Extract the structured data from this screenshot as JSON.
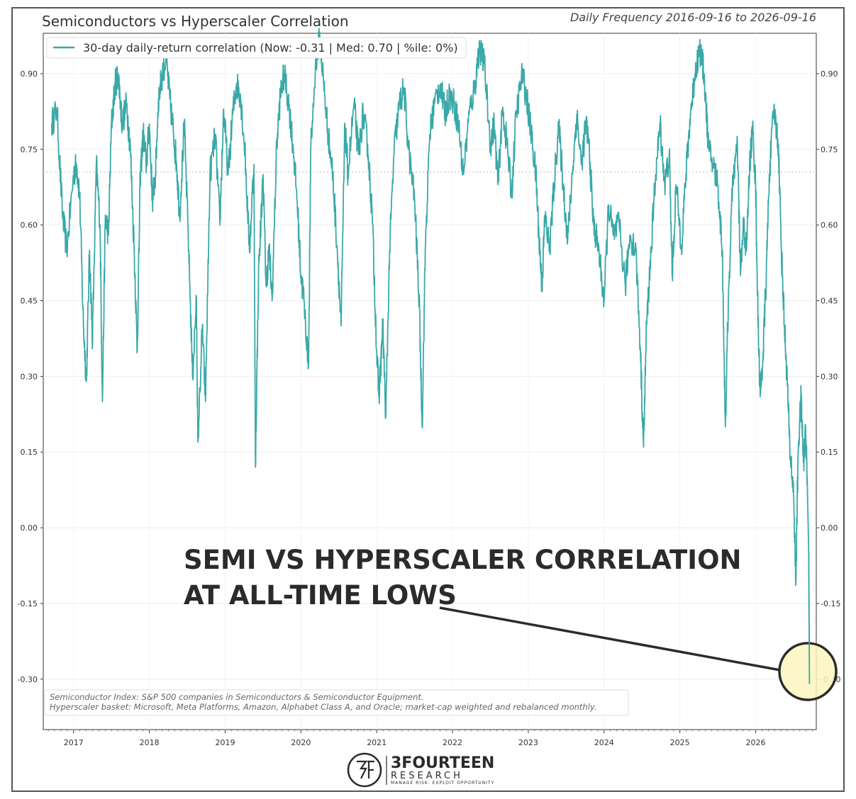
{
  "chart_data": {
    "type": "line",
    "title": "Semiconductors vs Hyperscaler Correlation",
    "subtitle": "Daily Frequency 2016-09-16 to 2026-09-16",
    "series": [
      {
        "name": "30-day daily-return correlation (Now: -0.31 | Med: 0.70 | %ile: 0%)",
        "color": "#3aa8a8",
        "points": [
          [
            2016.71,
            0.8
          ],
          [
            2016.78,
            0.83
          ],
          [
            2016.85,
            0.63
          ],
          [
            2016.91,
            0.55
          ],
          [
            2017.0,
            0.7
          ],
          [
            2017.04,
            0.72
          ],
          [
            2017.08,
            0.66
          ],
          [
            2017.13,
            0.4
          ],
          [
            2017.17,
            0.29
          ],
          [
            2017.21,
            0.55
          ],
          [
            2017.25,
            0.37
          ],
          [
            2017.3,
            0.72
          ],
          [
            2017.35,
            0.6
          ],
          [
            2017.38,
            0.25
          ],
          [
            2017.42,
            0.62
          ],
          [
            2017.46,
            0.58
          ],
          [
            2017.5,
            0.8
          ],
          [
            2017.55,
            0.88
          ],
          [
            2017.59,
            0.9
          ],
          [
            2017.64,
            0.8
          ],
          [
            2017.7,
            0.84
          ],
          [
            2017.75,
            0.75
          ],
          [
            2017.8,
            0.55
          ],
          [
            2017.84,
            0.35
          ],
          [
            2017.88,
            0.7
          ],
          [
            2017.92,
            0.78
          ],
          [
            2017.96,
            0.72
          ],
          [
            2018.0,
            0.8
          ],
          [
            2018.04,
            0.65
          ],
          [
            2018.08,
            0.7
          ],
          [
            2018.12,
            0.85
          ],
          [
            2018.17,
            0.9
          ],
          [
            2018.22,
            0.93
          ],
          [
            2018.27,
            0.85
          ],
          [
            2018.32,
            0.78
          ],
          [
            2018.36,
            0.72
          ],
          [
            2018.4,
            0.62
          ],
          [
            2018.46,
            0.8
          ],
          [
            2018.52,
            0.55
          ],
          [
            2018.57,
            0.3
          ],
          [
            2018.62,
            0.45
          ],
          [
            2018.64,
            0.17
          ],
          [
            2018.7,
            0.4
          ],
          [
            2018.74,
            0.25
          ],
          [
            2018.8,
            0.7
          ],
          [
            2018.87,
            0.78
          ],
          [
            2018.93,
            0.6
          ],
          [
            2018.98,
            0.83
          ],
          [
            2019.04,
            0.7
          ],
          [
            2019.1,
            0.82
          ],
          [
            2019.15,
            0.88
          ],
          [
            2019.2,
            0.86
          ],
          [
            2019.26,
            0.75
          ],
          [
            2019.32,
            0.55
          ],
          [
            2019.38,
            0.72
          ],
          [
            2019.4,
            0.12
          ],
          [
            2019.44,
            0.5
          ],
          [
            2019.5,
            0.7
          ],
          [
            2019.54,
            0.48
          ],
          [
            2019.58,
            0.55
          ],
          [
            2019.62,
            0.45
          ],
          [
            2019.68,
            0.76
          ],
          [
            2019.73,
            0.86
          ],
          [
            2019.78,
            0.9
          ],
          [
            2019.84,
            0.84
          ],
          [
            2019.9,
            0.75
          ],
          [
            2019.95,
            0.65
          ],
          [
            2020.0,
            0.5
          ],
          [
            2020.04,
            0.45
          ],
          [
            2020.1,
            0.32
          ],
          [
            2020.13,
            0.75
          ],
          [
            2020.2,
            0.93
          ],
          [
            2020.25,
            0.97
          ],
          [
            2020.3,
            0.88
          ],
          [
            2020.36,
            0.78
          ],
          [
            2020.42,
            0.7
          ],
          [
            2020.48,
            0.55
          ],
          [
            2020.53,
            0.4
          ],
          [
            2020.58,
            0.8
          ],
          [
            2020.62,
            0.7
          ],
          [
            2020.7,
            0.84
          ],
          [
            2020.76,
            0.74
          ],
          [
            2020.82,
            0.82
          ],
          [
            2020.88,
            0.76
          ],
          [
            2020.94,
            0.62
          ],
          [
            2021.0,
            0.35
          ],
          [
            2021.03,
            0.26
          ],
          [
            2021.08,
            0.4
          ],
          [
            2021.12,
            0.22
          ],
          [
            2021.17,
            0.55
          ],
          [
            2021.23,
            0.75
          ],
          [
            2021.3,
            0.84
          ],
          [
            2021.36,
            0.87
          ],
          [
            2021.42,
            0.75
          ],
          [
            2021.5,
            0.65
          ],
          [
            2021.56,
            0.45
          ],
          [
            2021.6,
            0.2
          ],
          [
            2021.64,
            0.55
          ],
          [
            2021.7,
            0.78
          ],
          [
            2021.76,
            0.84
          ],
          [
            2021.84,
            0.88
          ],
          [
            2021.9,
            0.82
          ],
          [
            2021.96,
            0.86
          ],
          [
            2022.02,
            0.84
          ],
          [
            2022.08,
            0.8
          ],
          [
            2022.14,
            0.7
          ],
          [
            2022.22,
            0.82
          ],
          [
            2022.3,
            0.88
          ],
          [
            2022.35,
            0.95
          ],
          [
            2022.42,
            0.92
          ],
          [
            2022.5,
            0.76
          ],
          [
            2022.55,
            0.8
          ],
          [
            2022.6,
            0.68
          ],
          [
            2022.66,
            0.83
          ],
          [
            2022.72,
            0.76
          ],
          [
            2022.78,
            0.66
          ],
          [
            2022.84,
            0.82
          ],
          [
            2022.92,
            0.9
          ],
          [
            2022.98,
            0.85
          ],
          [
            2023.04,
            0.78
          ],
          [
            2023.1,
            0.7
          ],
          [
            2023.14,
            0.58
          ],
          [
            2023.18,
            0.48
          ],
          [
            2023.22,
            0.62
          ],
          [
            2023.28,
            0.55
          ],
          [
            2023.34,
            0.68
          ],
          [
            2023.4,
            0.8
          ],
          [
            2023.46,
            0.68
          ],
          [
            2023.52,
            0.57
          ],
          [
            2023.58,
            0.7
          ],
          [
            2023.64,
            0.82
          ],
          [
            2023.7,
            0.72
          ],
          [
            2023.76,
            0.8
          ],
          [
            2023.8,
            0.76
          ],
          [
            2023.86,
            0.6
          ],
          [
            2023.92,
            0.56
          ],
          [
            2024.0,
            0.45
          ],
          [
            2024.06,
            0.64
          ],
          [
            2024.12,
            0.58
          ],
          [
            2024.2,
            0.6
          ],
          [
            2024.28,
            0.48
          ],
          [
            2024.34,
            0.58
          ],
          [
            2024.42,
            0.55
          ],
          [
            2024.48,
            0.35
          ],
          [
            2024.52,
            0.16
          ],
          [
            2024.56,
            0.4
          ],
          [
            2024.62,
            0.55
          ],
          [
            2024.68,
            0.7
          ],
          [
            2024.74,
            0.8
          ],
          [
            2024.8,
            0.68
          ],
          [
            2024.86,
            0.74
          ],
          [
            2024.9,
            0.5
          ],
          [
            2024.95,
            0.68
          ],
          [
            2025.02,
            0.56
          ],
          [
            2025.08,
            0.7
          ],
          [
            2025.14,
            0.82
          ],
          [
            2025.2,
            0.9
          ],
          [
            2025.26,
            0.95
          ],
          [
            2025.32,
            0.9
          ],
          [
            2025.38,
            0.75
          ],
          [
            2025.44,
            0.72
          ],
          [
            2025.5,
            0.68
          ],
          [
            2025.56,
            0.55
          ],
          [
            2025.6,
            0.2
          ],
          [
            2025.64,
            0.45
          ],
          [
            2025.7,
            0.7
          ],
          [
            2025.76,
            0.75
          ],
          [
            2025.8,
            0.5
          ],
          [
            2025.84,
            0.6
          ],
          [
            2025.88,
            0.55
          ],
          [
            2025.92,
            0.72
          ],
          [
            2025.96,
            0.79
          ],
          [
            2026.0,
            0.68
          ],
          [
            2026.03,
            0.42
          ],
          [
            2026.06,
            0.26
          ],
          [
            2026.1,
            0.35
          ],
          [
            2026.14,
            0.5
          ],
          [
            2026.18,
            0.7
          ],
          [
            2026.24,
            0.83
          ],
          [
            2026.3,
            0.76
          ],
          [
            2026.34,
            0.55
          ],
          [
            2026.38,
            0.4
          ],
          [
            2026.42,
            0.28
          ],
          [
            2026.45,
            0.16
          ],
          [
            2026.5,
            0.07
          ],
          [
            2026.53,
            -0.11
          ],
          [
            2026.56,
            0.15
          ],
          [
            2026.6,
            0.26
          ],
          [
            2026.63,
            0.13
          ],
          [
            2026.66,
            0.19
          ],
          [
            2026.68,
            0.1
          ],
          [
            2026.7,
            -0.05
          ],
          [
            2026.71,
            -0.31
          ]
        ]
      }
    ],
    "median_line": 0.705,
    "xlim": [
      2016.6,
      2026.8
    ],
    "ylim": [
      -0.4,
      0.98
    ],
    "x_ticks": [
      "2017",
      "2018",
      "2019",
      "2020",
      "2021",
      "2022",
      "2023",
      "2024",
      "2025",
      "2026"
    ],
    "y_ticks": [
      "0.90",
      "0.75",
      "0.60",
      "0.45",
      "0.30",
      "0.15",
      "0.00",
      "-0.15",
      "-0.30"
    ],
    "legend_position": "top-left",
    "grid": true,
    "notes": [
      "Semiconductor Index: S&P 500 companies in Semiconductors & Semiconductor Equipment.",
      "Hyperscaler basket: Microsoft, Meta Platforms, Amazon, Alphabet Class A, and Oracle; market-cap weighted and rebalanced monthly."
    ],
    "annotation": {
      "line1": "SEMI VS HYPERSCALER CORRELATION",
      "line2": "AT ALL-TIME LOWS"
    }
  },
  "logo": {
    "name": "3FOURTEEN",
    "sub": "RESEARCH",
    "tagline": "MANAGE RISK. EXPLOIT OPPORTUNITY"
  }
}
